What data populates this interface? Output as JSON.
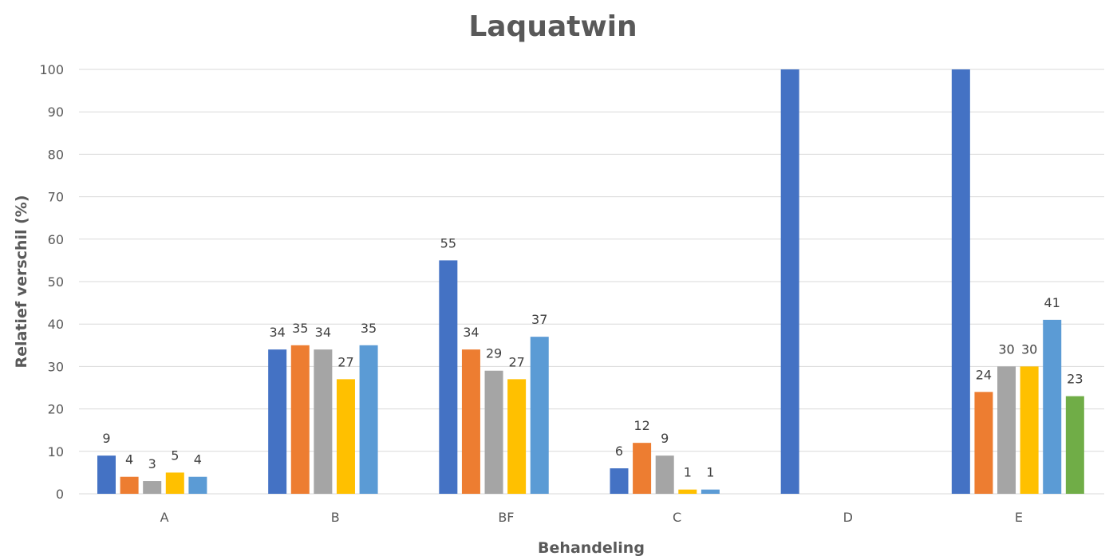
{
  "chart_data": {
    "type": "bar",
    "title": "Laquatwin",
    "xlabel": "Behandeling",
    "ylabel": "Relatief verschil (%)",
    "ylim": [
      0,
      100
    ],
    "yticks": [
      0,
      10,
      20,
      30,
      40,
      50,
      60,
      70,
      80,
      90,
      100
    ],
    "grid": true,
    "legend": "none",
    "categories": [
      "A",
      "B",
      "BF",
      "C",
      "D",
      "E"
    ],
    "series": [
      {
        "color": "#4472c4",
        "values": [
          9,
          34,
          55,
          6,
          null,
          null
        ],
        "bar_values": [
          9,
          34,
          55,
          6,
          100,
          100
        ],
        "labels": [
          "9",
          "34",
          "55",
          "6",
          "",
          ""
        ]
      },
      {
        "color": "#ed7d31",
        "values": [
          4,
          35,
          34,
          12,
          null,
          24
        ],
        "labels": [
          "4",
          "35",
          "34",
          "12",
          "",
          "24"
        ]
      },
      {
        "color": "#a5a5a5",
        "values": [
          3,
          34,
          29,
          9,
          null,
          30
        ],
        "labels": [
          "3",
          "34",
          "29",
          "9",
          "",
          "30"
        ]
      },
      {
        "color": "#ffc000",
        "values": [
          5,
          27,
          27,
          1,
          null,
          30
        ],
        "labels": [
          "5",
          "27",
          "27",
          "1",
          "",
          "30"
        ]
      },
      {
        "color": "#5b9bd5",
        "values": [
          4,
          35,
          37,
          1,
          null,
          41
        ],
        "labels": [
          "4",
          "35",
          "37",
          "1",
          "",
          "41"
        ]
      },
      {
        "color": "#70ad47",
        "values": [
          null,
          null,
          null,
          null,
          null,
          23
        ],
        "labels": [
          "",
          "",
          "",
          "",
          "",
          "23"
        ]
      }
    ]
  }
}
